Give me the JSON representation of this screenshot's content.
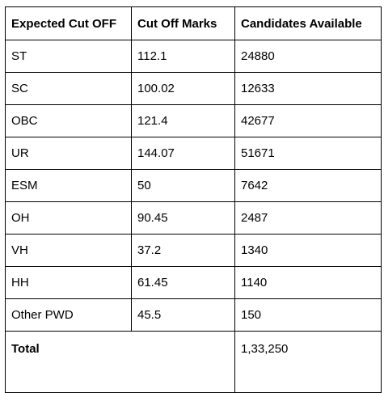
{
  "table": {
    "headers": [
      "Expected Cut OFF",
      "Cut Off Marks",
      "Candidates Available"
    ],
    "rows": [
      [
        "ST",
        "112.1",
        "24880"
      ],
      [
        "SC",
        "100.02",
        "12633"
      ],
      [
        "OBC",
        "121.4",
        "42677"
      ],
      [
        "UR",
        "144.07",
        "51671"
      ],
      [
        "ESM",
        "50",
        "7642"
      ],
      [
        "OH",
        "90.45",
        "2487"
      ],
      [
        "VH",
        "37.2",
        "1340"
      ],
      [
        "HH",
        "61.45",
        "1140"
      ],
      [
        "Other PWD",
        "45.5",
        "150"
      ]
    ],
    "total": {
      "label": "Total",
      "value": "1,33,250"
    }
  }
}
